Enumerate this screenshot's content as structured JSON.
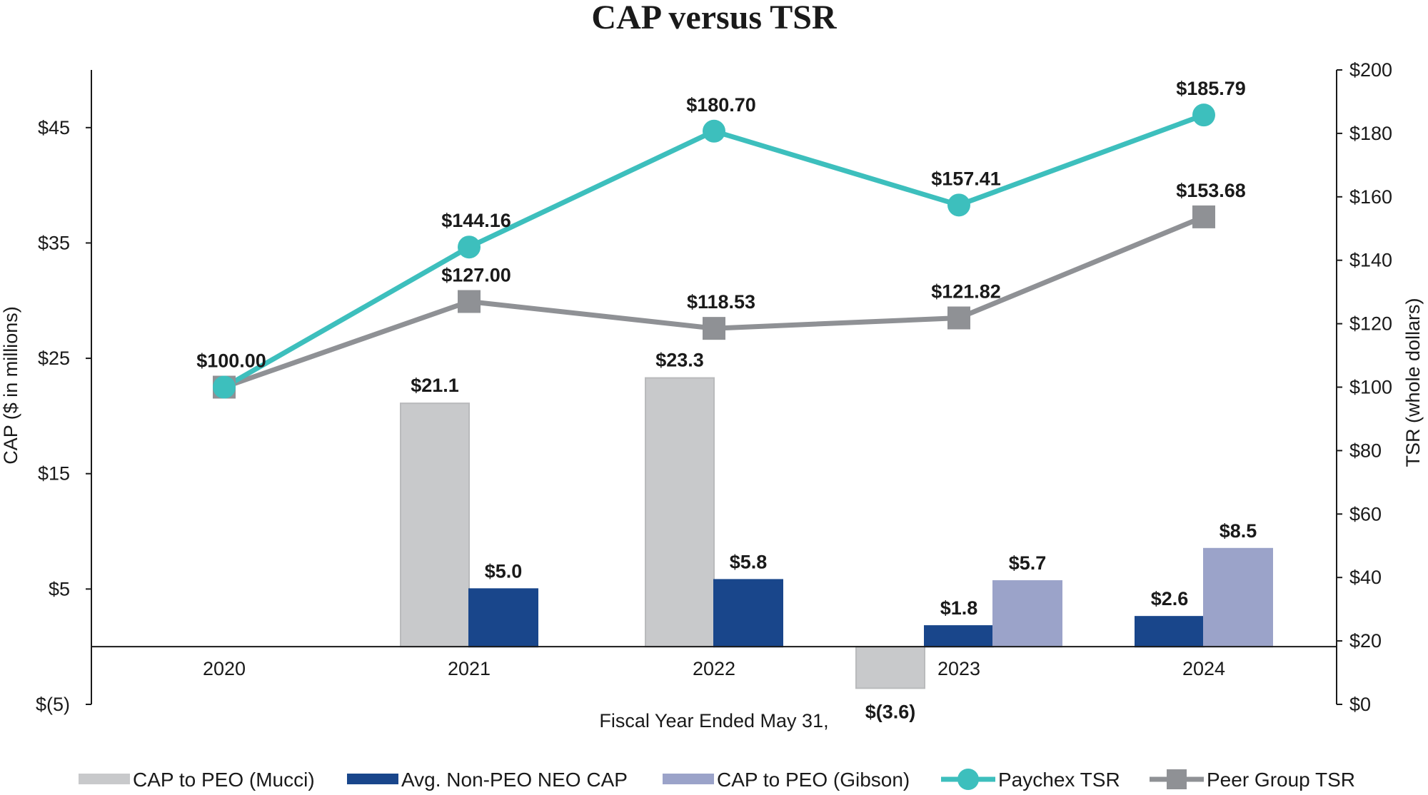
{
  "chart_data": {
    "type": "bar+line",
    "title": "CAP versus TSR",
    "xlabel": "Fiscal Year Ended May 31,",
    "ylabel_left": "CAP ($ in millions)",
    "ylabel_right": "TSR (whole dollars)",
    "categories": [
      "2020",
      "2021",
      "2022",
      "2023",
      "2024"
    ],
    "ylim_left": [
      -5,
      50
    ],
    "ylim_right": [
      0,
      200
    ],
    "left_ticks": [
      {
        "value": -5,
        "label": "$(5)"
      },
      {
        "value": 5,
        "label": "$5"
      },
      {
        "value": 15,
        "label": "$15"
      },
      {
        "value": 25,
        "label": "$25"
      },
      {
        "value": 35,
        "label": "$35"
      },
      {
        "value": 45,
        "label": "$45"
      }
    ],
    "right_ticks": [
      {
        "value": 0,
        "label": "$0"
      },
      {
        "value": 20,
        "label": "$20"
      },
      {
        "value": 40,
        "label": "$40"
      },
      {
        "value": 60,
        "label": "$60"
      },
      {
        "value": 80,
        "label": "$80"
      },
      {
        "value": 100,
        "label": "$100"
      },
      {
        "value": 120,
        "label": "$120"
      },
      {
        "value": 140,
        "label": "$140"
      },
      {
        "value": 160,
        "label": "$160"
      },
      {
        "value": 180,
        "label": "$180"
      },
      {
        "value": 200,
        "label": "$200"
      }
    ],
    "bar_series": [
      {
        "name": "CAP to PEO (Mucci)",
        "color": "#c8c9cb",
        "stroke": "#b9babc",
        "values": [
          null,
          21.1,
          23.3,
          -3.6,
          null
        ],
        "labels": [
          "",
          "$21.1",
          "$23.3",
          "$(3.6)",
          ""
        ]
      },
      {
        "name": "Avg. Non-PEO NEO CAP",
        "color": "#19468b",
        "stroke": "#19468b",
        "values": [
          null,
          5.0,
          5.8,
          1.8,
          2.6
        ],
        "labels": [
          "",
          "$5.0",
          "$5.8",
          "$1.8",
          "$2.6"
        ]
      },
      {
        "name": "CAP to PEO (Gibson)",
        "color": "#9ba3c9",
        "stroke": "#9ba3c9",
        "values": [
          null,
          null,
          null,
          5.7,
          8.5
        ],
        "labels": [
          "",
          "",
          "",
          "$5.7",
          "$8.5"
        ]
      }
    ],
    "line_series": [
      {
        "name": "Paychex TSR",
        "color": "#3dbfbd",
        "marker": "circle",
        "values": [
          100.0,
          144.16,
          180.7,
          157.41,
          185.79
        ],
        "labels": [
          "",
          "$144.16",
          "$180.70",
          "$157.41",
          "$185.79"
        ]
      },
      {
        "name": "Peer Group TSR",
        "color": "#8f9195",
        "marker": "square",
        "values": [
          100.0,
          127.0,
          118.53,
          121.82,
          153.68
        ],
        "labels": [
          "$100.00",
          "$127.00",
          "$118.53",
          "$121.82",
          "$153.68"
        ]
      }
    ],
    "legend_position": "bottom"
  }
}
